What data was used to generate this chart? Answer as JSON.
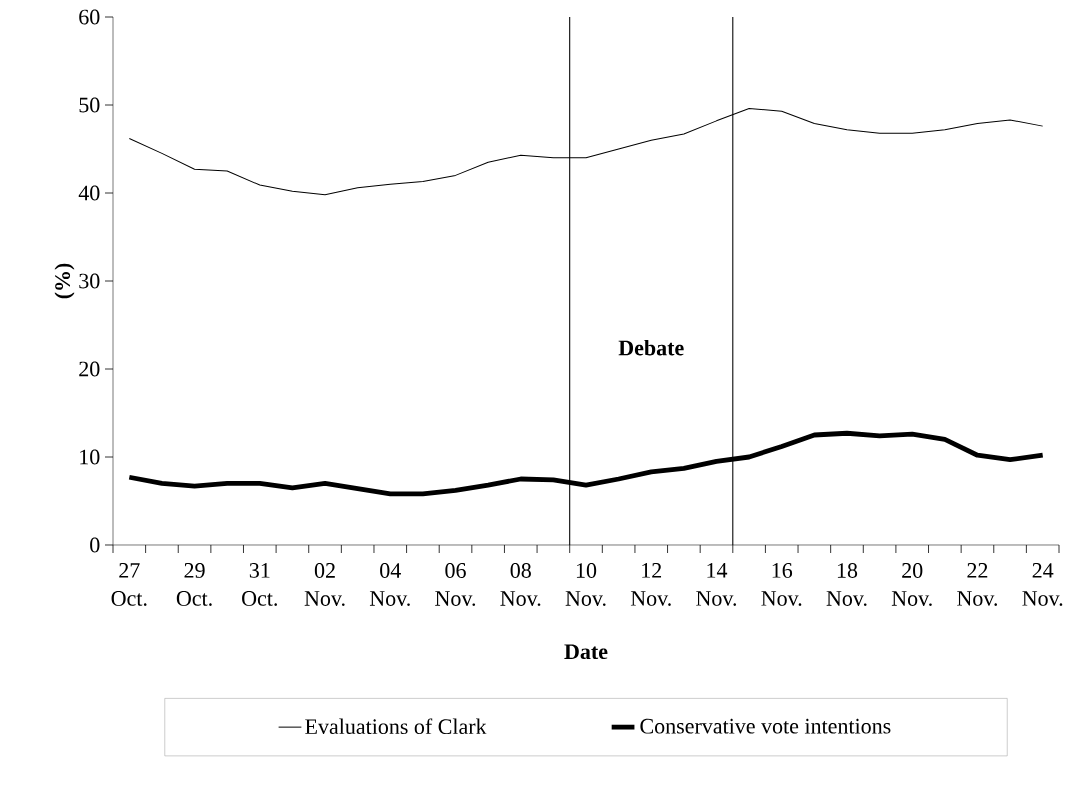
{
  "chart_data": {
    "type": "line",
    "xlabel": "Date",
    "ylabel": "(%)",
    "categories": [
      "27 Oct.",
      null,
      "29 Oct.",
      null,
      "31 Oct.",
      null,
      "02 Nov.",
      null,
      "04 Nov.",
      null,
      "06 Nov.",
      null,
      "08 Nov.",
      null,
      "10 Nov.",
      null,
      "12 Nov.",
      null,
      "14 Nov.",
      null,
      "16 Nov.",
      null,
      "18 Nov.",
      null,
      "20 Nov.",
      null,
      "22 Nov.",
      null,
      "24 Nov."
    ],
    "series": [
      {
        "name": "Evaluations of Clark",
        "color": "#000000",
        "values": [
          46.2,
          44.5,
          42.7,
          42.5,
          40.9,
          40.2,
          39.8,
          40.6,
          41.0,
          41.3,
          42.0,
          43.5,
          44.3,
          44.0,
          44.0,
          45.0,
          46.0,
          46.7,
          48.2,
          49.6,
          49.3,
          47.9,
          47.2,
          46.8,
          46.8,
          47.2,
          47.9,
          48.3,
          47.6
        ]
      },
      {
        "name": "Conservative vote intentions",
        "color": "#000000",
        "values": [
          7.7,
          7.0,
          6.7,
          7.0,
          7.0,
          6.5,
          7.0,
          6.4,
          5.8,
          5.8,
          6.2,
          6.8,
          7.5,
          7.4,
          6.8,
          7.5,
          8.3,
          8.7,
          9.5,
          10.0,
          11.2,
          12.5,
          12.7,
          12.4,
          12.6,
          12.0,
          10.2,
          9.7,
          10.2
        ]
      }
    ],
    "ylim": [
      0,
      60
    ],
    "yticks": [
      0,
      10,
      20,
      30,
      40,
      50,
      60
    ],
    "legend": "bottom",
    "line_style": "solid",
    "annotations": [
      "Debate"
    ]
  }
}
